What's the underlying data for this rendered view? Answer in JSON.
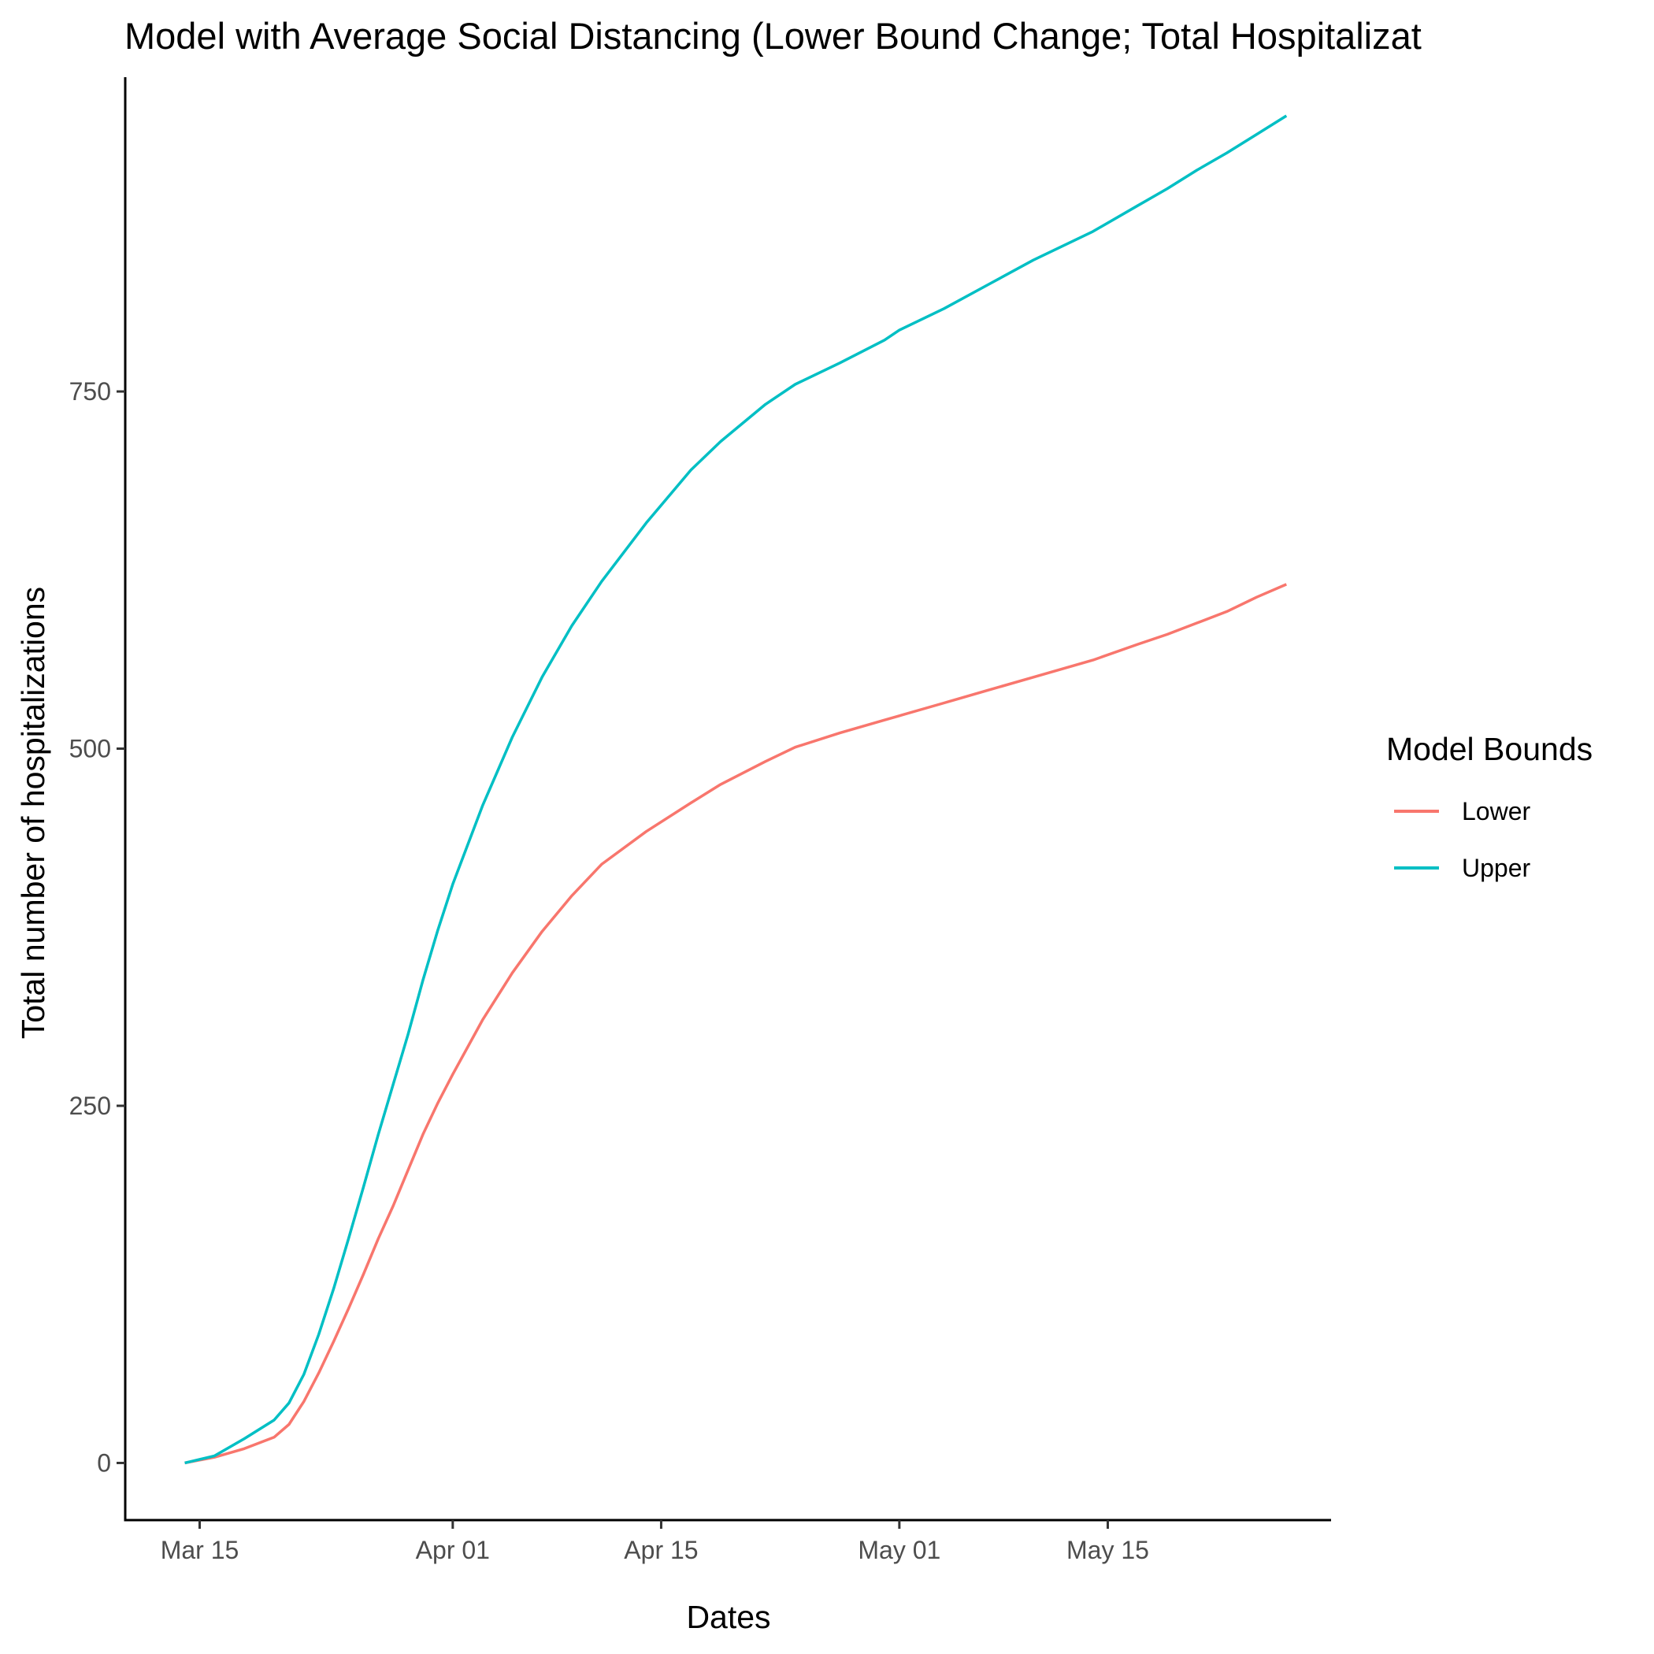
{
  "chart_data": {
    "type": "line",
    "title": "Model with Average Social Distancing (Lower Bound Change; Total Hospitalizat",
    "xlabel": "Dates",
    "ylabel": "Total number of hospitalizations",
    "x_ticks": [
      "Mar 15",
      "Apr 01",
      "Apr 15",
      "May 01",
      "May 15"
    ],
    "x_tick_dates": [
      "2020-03-15",
      "2020-04-01",
      "2020-04-15",
      "2020-05-01",
      "2020-05-15"
    ],
    "y_ticks": [
      0,
      250,
      500,
      750
    ],
    "ylim": [
      -40,
      970
    ],
    "xlim": [
      "2020-03-10",
      "2020-05-30"
    ],
    "grid": false,
    "legend": {
      "title": "Model Bounds",
      "position": "right"
    },
    "x": [
      "2020-03-14",
      "2020-03-16",
      "2020-03-18",
      "2020-03-20",
      "2020-03-21",
      "2020-03-22",
      "2020-03-23",
      "2020-03-24",
      "2020-03-25",
      "2020-03-26",
      "2020-03-27",
      "2020-03-28",
      "2020-03-29",
      "2020-03-30",
      "2020-03-31",
      "2020-04-01",
      "2020-04-03",
      "2020-04-05",
      "2020-04-07",
      "2020-04-09",
      "2020-04-11",
      "2020-04-14",
      "2020-04-17",
      "2020-04-19",
      "2020-04-22",
      "2020-04-24",
      "2020-04-27",
      "2020-04-30",
      "2020-05-01",
      "2020-05-04",
      "2020-05-07",
      "2020-05-10",
      "2020-05-14",
      "2020-05-17",
      "2020-05-19",
      "2020-05-21",
      "2020-05-23",
      "2020-05-25",
      "2020-05-27"
    ],
    "series": [
      {
        "name": "Lower",
        "color": "#f8766d",
        "values": [
          0,
          4,
          10,
          18,
          27,
          43,
          63,
          85,
          108,
          132,
          157,
          180,
          205,
          230,
          252,
          272,
          310,
          343,
          372,
          397,
          419,
          442,
          462,
          475,
          491,
          501,
          511,
          520,
          523,
          532,
          541,
          550,
          562,
          573,
          580,
          588,
          596,
          606,
          615
        ]
      },
      {
        "name": "Upper",
        "color": "#00bfc4",
        "values": [
          0,
          5,
          17,
          30,
          42,
          62,
          90,
          122,
          157,
          193,
          230,
          265,
          300,
          338,
          373,
          405,
          460,
          508,
          550,
          586,
          617,
          658,
          695,
          715,
          741,
          755,
          770,
          786,
          793,
          808,
          825,
          842,
          862,
          880,
          892,
          905,
          917,
          930,
          943
        ]
      }
    ]
  }
}
